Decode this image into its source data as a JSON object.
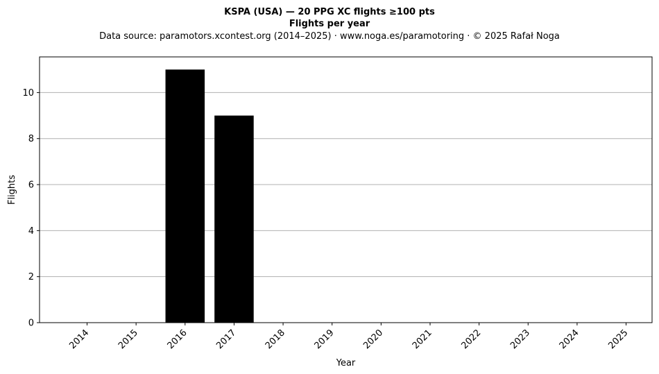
{
  "header": {
    "title_line1": "KSPA (USA)  —  20 PPG XC flights ≥100 pts",
    "title_line2": "Flights per year",
    "source": "Data source: paramotors.xcontest.org (2014–2025)  ·  www.noga.es/paramotoring  ·  © 2025 Rafał Noga"
  },
  "chart_data": {
    "type": "bar",
    "title": "KSPA (USA)  —  20 PPG XC flights ≥100 pts",
    "subtitle": "Flights per year",
    "categories": [
      "2014",
      "2015",
      "2016",
      "2017",
      "2018",
      "2019",
      "2020",
      "2021",
      "2022",
      "2023",
      "2024",
      "2025"
    ],
    "values": [
      0,
      0,
      11,
      9,
      0,
      0,
      0,
      0,
      0,
      0,
      0,
      0
    ],
    "xlabel": "Year",
    "ylabel": "Flights",
    "ylim": [
      0,
      11.55
    ],
    "yticks": [
      "0",
      "2",
      "4",
      "6",
      "8",
      "10"
    ],
    "grid": "horizontal",
    "bar_color": "#000000",
    "grid_color": "#b0b0b0"
  }
}
